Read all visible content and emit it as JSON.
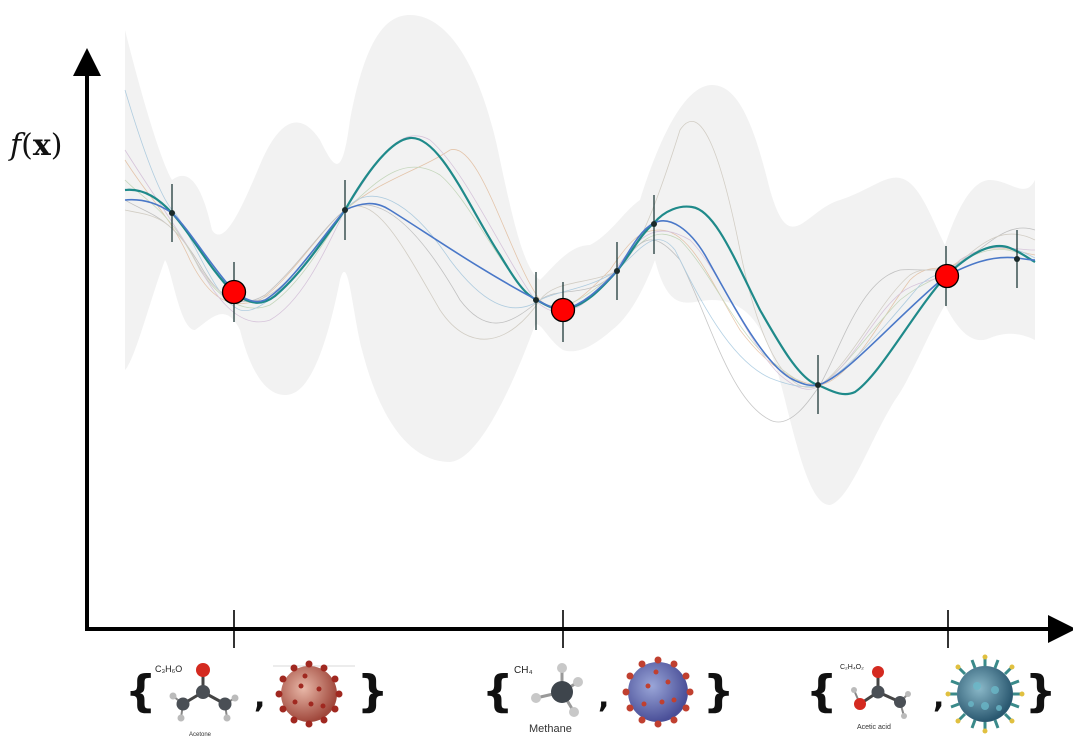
{
  "axis": {
    "ylabel_func": "f",
    "ylabel_arg": "x"
  },
  "pairs": [
    {
      "formula": "C₃H₆O",
      "molecule": "Acetone",
      "molecule_icon": "acetone-molecule-icon",
      "virus_icon": "coronavirus-icon"
    },
    {
      "formula": "CH₄",
      "molecule": "Methane",
      "molecule_icon": "methane-molecule-icon",
      "virus_icon": "coronavirus-icon"
    },
    {
      "formula": "C₂H₄O₂",
      "molecule": "Acetic acid",
      "molecule_icon": "acetic-acid-molecule-icon",
      "virus_icon": "coronavirus-icon"
    }
  ],
  "colors": {
    "axis": "#000000",
    "band": "#f2f2f2",
    "mean": "#1f8a8a",
    "sample": "#4a78c8",
    "observed_point": "#ff0000",
    "virus1": "#b0483c",
    "virus2": "#6a6fb0",
    "virus3": "#3a6a80"
  }
}
